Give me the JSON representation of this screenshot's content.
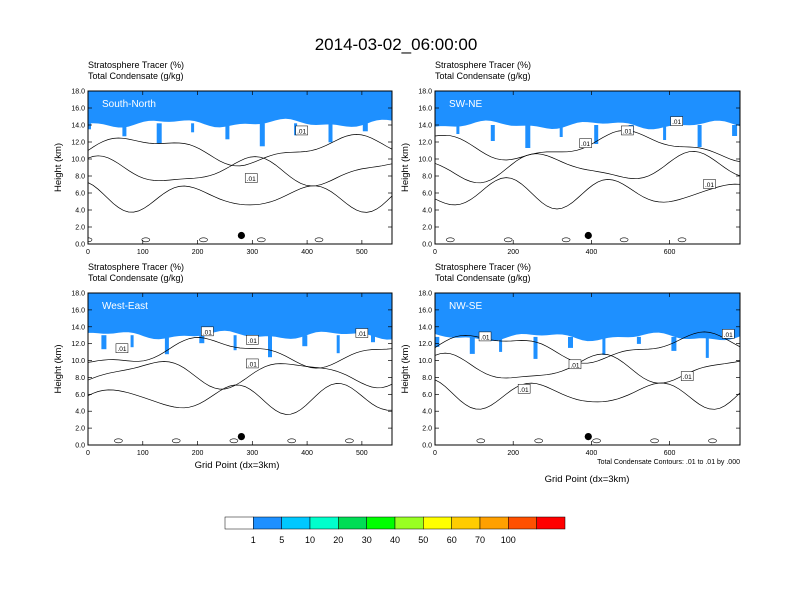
{
  "figure": {
    "title": "2014-03-02_06:00:00",
    "shared_xlabel": "Grid Point (dx=3km)",
    "contour_note": "Total Condensate Contours: .01 to .01 by .000"
  },
  "colorbar": {
    "colors": [
      "#ffffff",
      "#1e90ff",
      "#00c8ff",
      "#00ffcc",
      "#00dd55",
      "#00ff00",
      "#99ff22",
      "#ffff00",
      "#ffcc00",
      "#ffa000",
      "#ff5000",
      "#ff0000"
    ],
    "labels": [
      "1",
      "5",
      "10",
      "20",
      "30",
      "40",
      "50",
      "60",
      "70",
      "100"
    ]
  },
  "chart_data": [
    {
      "type": "heatmap",
      "title_line1": "Stratosphere Tracer   (%)",
      "title_line2": "Total Condensate   (g/kg)",
      "panel_name": "South-North",
      "ylabel": "Height (km)",
      "xlabel": "",
      "xlim": [
        0,
        555
      ],
      "ylim": [
        0,
        18
      ],
      "xticks": [
        0,
        100,
        200,
        300,
        400,
        500
      ],
      "yticks": [
        "0.0",
        "2.0",
        "4.0",
        "6.0",
        "8.0",
        "10.0",
        "12.0",
        "14.0",
        "16.0",
        "18.0"
      ],
      "marker": {
        "x": 280,
        "y": 1.0
      },
      "contour_labels": [
        {
          "text": ".01",
          "x": 390,
          "y": 13.3
        },
        {
          "text": ".01",
          "x": 298,
          "y": 7.7
        }
      ],
      "tracer_base_km": 14.2
    },
    {
      "type": "heatmap",
      "title_line1": "Stratosphere Tracer   (%)",
      "title_line2": "Total Condensate   (g/kg)",
      "panel_name": "SW-NE",
      "ylabel": "Height (km)",
      "xlabel": "",
      "xlim": [
        0,
        780
      ],
      "ylim": [
        0,
        18
      ],
      "xticks": [
        0,
        200,
        400,
        600
      ],
      "yticks": [
        "0.0",
        "2.0",
        "4.0",
        "6.0",
        "8.0",
        "10.0",
        "12.0",
        "14.0",
        "16.0",
        "18.0"
      ],
      "marker": {
        "x": 392,
        "y": 1.0
      },
      "contour_labels": [
        {
          "text": ".01",
          "x": 492,
          "y": 13.3
        },
        {
          "text": ".01",
          "x": 385,
          "y": 11.8
        },
        {
          "text": ".01",
          "x": 618,
          "y": 14.4
        },
        {
          "text": ".01",
          "x": 702,
          "y": 7.0
        }
      ],
      "tracer_base_km": 14.0
    },
    {
      "type": "heatmap",
      "title_line1": "Stratosphere Tracer   (%)",
      "title_line2": "Total Condensate   (g/kg)",
      "panel_name": "West-East",
      "ylabel": "Height (km)",
      "xlabel": "Grid Point (dx=3km)",
      "xlim": [
        0,
        555
      ],
      "ylim": [
        0,
        18
      ],
      "xticks": [
        0,
        100,
        200,
        300,
        400,
        500
      ],
      "yticks": [
        "0.0",
        "2.0",
        "4.0",
        "6.0",
        "8.0",
        "10.0",
        "12.0",
        "14.0",
        "16.0",
        "18.0"
      ],
      "marker": {
        "x": 280,
        "y": 1.0
      },
      "contour_labels": [
        {
          "text": ".01",
          "x": 218,
          "y": 13.4
        },
        {
          "text": ".01",
          "x": 62,
          "y": 11.4
        },
        {
          "text": ".01",
          "x": 300,
          "y": 12.4
        },
        {
          "text": ".01",
          "x": 300,
          "y": 9.6
        },
        {
          "text": ".01",
          "x": 500,
          "y": 13.2
        }
      ],
      "tracer_base_km": 13.0
    },
    {
      "type": "heatmap",
      "title_line1": "Stratosphere Tracer   (%)",
      "title_line2": "Total Condensate   (g/kg)",
      "panel_name": "NW-SE",
      "ylabel": "Height (km)",
      "xlabel": "Grid Point (dx=3km)",
      "xlim": [
        0,
        780
      ],
      "ylim": [
        0,
        18
      ],
      "xticks": [
        0,
        200,
        400,
        600
      ],
      "yticks": [
        "0.0",
        "2.0",
        "4.0",
        "6.0",
        "8.0",
        "10.0",
        "12.0",
        "14.0",
        "16.0",
        "18.0"
      ],
      "marker": {
        "x": 392,
        "y": 1.0
      },
      "contour_labels": [
        {
          "text": ".01",
          "x": 128,
          "y": 12.8
        },
        {
          "text": ".01",
          "x": 358,
          "y": 9.5
        },
        {
          "text": ".01",
          "x": 228,
          "y": 6.6
        },
        {
          "text": ".01",
          "x": 645,
          "y": 8.1
        },
        {
          "text": ".01",
          "x": 750,
          "y": 13.1
        }
      ],
      "tracer_base_km": 12.8
    }
  ]
}
